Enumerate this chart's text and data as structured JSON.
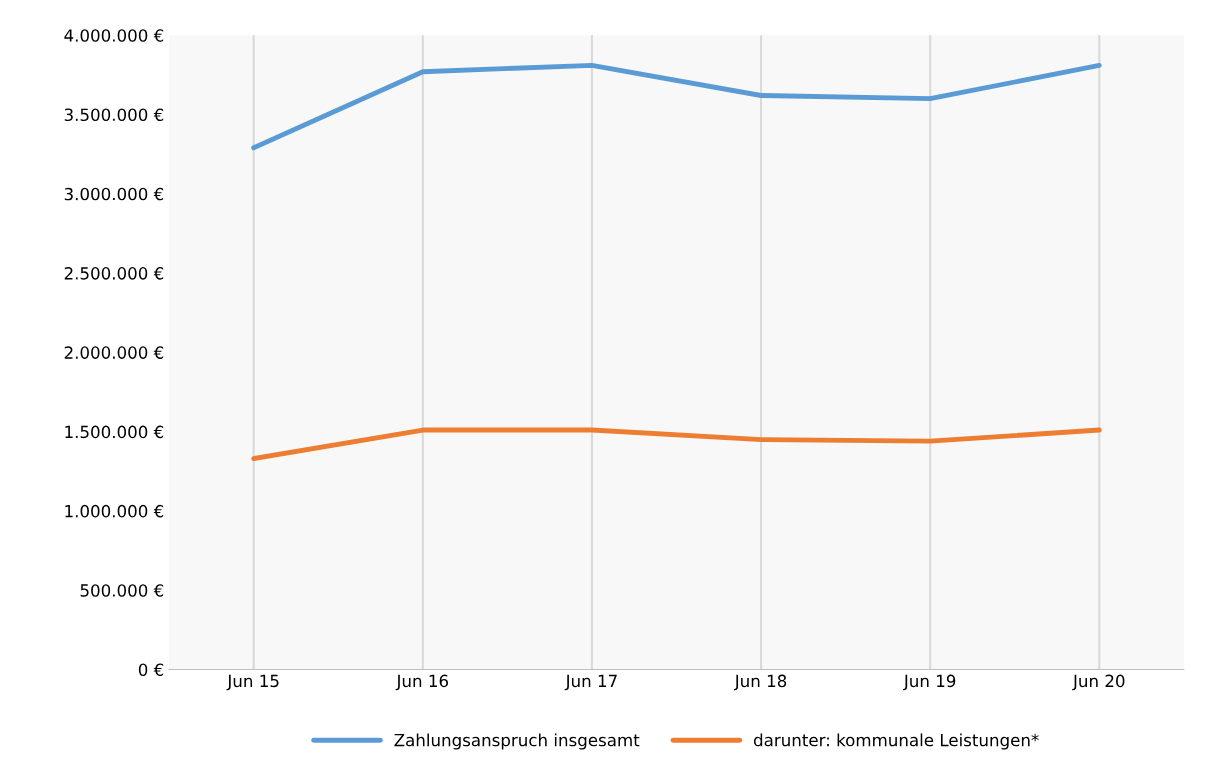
{
  "chart_data": {
    "type": "line",
    "categories": [
      "Jun 15",
      "Jun 16",
      "Jun 17",
      "Jun 18",
      "Jun 19",
      "Jun 20"
    ],
    "series": [
      {
        "name": "Zahlungsanspruch insgesamt",
        "color": "#5b9bd5",
        "values": [
          3290000,
          3770000,
          3810000,
          3620000,
          3600000,
          3810000
        ]
      },
      {
        "name": "darunter: kommunale Leistungen*",
        "color": "#ed7d31",
        "values": [
          1330000,
          1510000,
          1510000,
          1450000,
          1440000,
          1510000
        ]
      }
    ],
    "ylim": [
      0,
      4000000
    ],
    "yticks": [
      {
        "value": 0,
        "label": "0 €"
      },
      {
        "value": 500000,
        "label": "500.000 €"
      },
      {
        "value": 1000000,
        "label": "1.000.000 €"
      },
      {
        "value": 1500000,
        "label": "1.500.000 €"
      },
      {
        "value": 2000000,
        "label": "2.000.000 €"
      },
      {
        "value": 2500000,
        "label": "2.500.000 €"
      },
      {
        "value": 3000000,
        "label": "3.000.000 €"
      },
      {
        "value": 3500000,
        "label": "3.500.000 €"
      },
      {
        "value": 4000000,
        "label": "4.000.000 €"
      }
    ],
    "grid": "x",
    "legend": "bottom",
    "marker": "none",
    "line_style": "solid"
  }
}
